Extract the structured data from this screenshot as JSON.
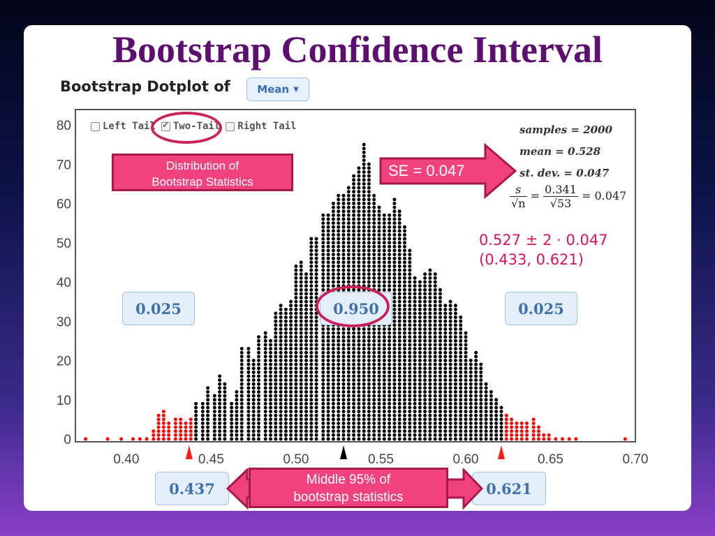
{
  "slide": {
    "title": "Bootstrap Confidence Interval"
  },
  "header": {
    "dotplot_label": "Bootstrap Dotplot of",
    "statistic_dropdown": "Mean"
  },
  "tail_options": [
    {
      "label": "Left Tail",
      "checked": false
    },
    {
      "label": "Two-Tail",
      "checked": true
    },
    {
      "label": "Right Tail",
      "checked": false
    }
  ],
  "stats": {
    "samples": "samples = 2000",
    "mean": "mean = 0.528",
    "sd": "st. dev. = 0.047"
  },
  "annotations": {
    "distribution_box": [
      "Distribution of",
      "Bootstrap Statistics"
    ],
    "se_label": "SE = 0.047",
    "formula": {
      "s": "s",
      "sqrt_n": "√n",
      "eq1": "=",
      "num": "0.341",
      "den": "√53",
      "result": "= 0.047"
    },
    "ci_calc": "0.527 ± 2 · 0.047",
    "ci_interval": "(0.433, 0.621)",
    "middle_box": [
      "Middle 95% of",
      "bootstrap statistics"
    ]
  },
  "proportions": {
    "left": "0.025",
    "middle": "0.950",
    "right": "0.025"
  },
  "bounds": {
    "lower": "0.437",
    "upper": "0.621"
  },
  "colors": {
    "title": "#5c0f6e",
    "accent": "#f0427c",
    "tail_dot": "#ff0000",
    "dot": "#000000",
    "bound_lower": "#ff1a1a",
    "bound_upper": "#ff1a1a",
    "center": "#000000"
  },
  "chart_data": {
    "type": "dotplot",
    "title": "Bootstrap Dotplot of Mean",
    "xlim": [
      0.37,
      0.7
    ],
    "ylim": [
      0,
      80
    ],
    "x_ticks": [
      "0.40",
      "0.45",
      "0.50",
      "0.55",
      "0.60",
      "0.65",
      "0.70"
    ],
    "x_tick_values": [
      0.4,
      0.45,
      0.5,
      0.55,
      0.6,
      0.65,
      0.7
    ],
    "y_ticks": [
      "0",
      "10",
      "20",
      "30",
      "40",
      "50",
      "60",
      "70",
      "80"
    ],
    "y_tick_values": [
      0,
      10,
      20,
      30,
      40,
      50,
      60,
      70,
      80
    ],
    "lower_bound": 0.437,
    "upper_bound": 0.621,
    "center": 0.528,
    "tail_columns": [
      {
        "x": 0.376,
        "count": 1
      },
      {
        "x": 0.389,
        "count": 1
      },
      {
        "x": 0.397,
        "count": 1
      },
      {
        "x": 0.404,
        "count": 1
      },
      {
        "x": 0.408,
        "count": 1
      },
      {
        "x": 0.412,
        "count": 1
      },
      {
        "x": 0.416,
        "count": 3
      },
      {
        "x": 0.419,
        "count": 7
      },
      {
        "x": 0.422,
        "count": 8
      },
      {
        "x": 0.425,
        "count": 5
      },
      {
        "x": 0.429,
        "count": 6
      },
      {
        "x": 0.432,
        "count": 6
      },
      {
        "x": 0.435,
        "count": 5
      },
      {
        "x": 0.438,
        "count": 6
      },
      {
        "x": 0.624,
        "count": 7
      },
      {
        "x": 0.627,
        "count": 6
      },
      {
        "x": 0.63,
        "count": 5
      },
      {
        "x": 0.633,
        "count": 5
      },
      {
        "x": 0.636,
        "count": 5
      },
      {
        "x": 0.64,
        "count": 6
      },
      {
        "x": 0.643,
        "count": 4
      },
      {
        "x": 0.646,
        "count": 2
      },
      {
        "x": 0.649,
        "count": 2
      },
      {
        "x": 0.653,
        "count": 1
      },
      {
        "x": 0.657,
        "count": 1
      },
      {
        "x": 0.661,
        "count": 1
      },
      {
        "x": 0.665,
        "count": 1
      },
      {
        "x": 0.694,
        "count": 1
      }
    ],
    "middle_columns": [
      {
        "x": 0.441,
        "count": 10
      },
      {
        "x": 0.445,
        "count": 10
      },
      {
        "x": 0.448,
        "count": 14
      },
      {
        "x": 0.452,
        "count": 12
      },
      {
        "x": 0.455,
        "count": 17
      },
      {
        "x": 0.458,
        "count": 15
      },
      {
        "x": 0.462,
        "count": 10
      },
      {
        "x": 0.465,
        "count": 13
      },
      {
        "x": 0.468,
        "count": 24
      },
      {
        "x": 0.472,
        "count": 24
      },
      {
        "x": 0.475,
        "count": 21
      },
      {
        "x": 0.478,
        "count": 27
      },
      {
        "x": 0.482,
        "count": 28
      },
      {
        "x": 0.485,
        "count": 26
      },
      {
        "x": 0.488,
        "count": 33
      },
      {
        "x": 0.491,
        "count": 35
      },
      {
        "x": 0.494,
        "count": 34
      },
      {
        "x": 0.497,
        "count": 36
      },
      {
        "x": 0.5,
        "count": 45
      },
      {
        "x": 0.503,
        "count": 46
      },
      {
        "x": 0.506,
        "count": 43
      },
      {
        "x": 0.509,
        "count": 52
      },
      {
        "x": 0.512,
        "count": 52
      },
      {
        "x": 0.516,
        "count": 58
      },
      {
        "x": 0.519,
        "count": 58
      },
      {
        "x": 0.522,
        "count": 61
      },
      {
        "x": 0.525,
        "count": 63
      },
      {
        "x": 0.528,
        "count": 63
      },
      {
        "x": 0.531,
        "count": 65
      },
      {
        "x": 0.534,
        "count": 68
      },
      {
        "x": 0.537,
        "count": 70
      },
      {
        "x": 0.54,
        "count": 76
      },
      {
        "x": 0.543,
        "count": 71
      },
      {
        "x": 0.546,
        "count": 63
      },
      {
        "x": 0.549,
        "count": 60
      },
      {
        "x": 0.552,
        "count": 58
      },
      {
        "x": 0.555,
        "count": 58
      },
      {
        "x": 0.558,
        "count": 62
      },
      {
        "x": 0.561,
        "count": 59
      },
      {
        "x": 0.564,
        "count": 55
      },
      {
        "x": 0.567,
        "count": 49
      },
      {
        "x": 0.57,
        "count": 42
      },
      {
        "x": 0.573,
        "count": 41
      },
      {
        "x": 0.576,
        "count": 43
      },
      {
        "x": 0.579,
        "count": 44
      },
      {
        "x": 0.582,
        "count": 43
      },
      {
        "x": 0.585,
        "count": 39
      },
      {
        "x": 0.588,
        "count": 35
      },
      {
        "x": 0.591,
        "count": 36
      },
      {
        "x": 0.594,
        "count": 35
      },
      {
        "x": 0.597,
        "count": 32
      },
      {
        "x": 0.6,
        "count": 28
      },
      {
        "x": 0.603,
        "count": 21
      },
      {
        "x": 0.606,
        "count": 23
      },
      {
        "x": 0.609,
        "count": 20
      },
      {
        "x": 0.612,
        "count": 15
      },
      {
        "x": 0.615,
        "count": 13
      },
      {
        "x": 0.618,
        "count": 11
      },
      {
        "x": 0.621,
        "count": 9
      }
    ]
  }
}
